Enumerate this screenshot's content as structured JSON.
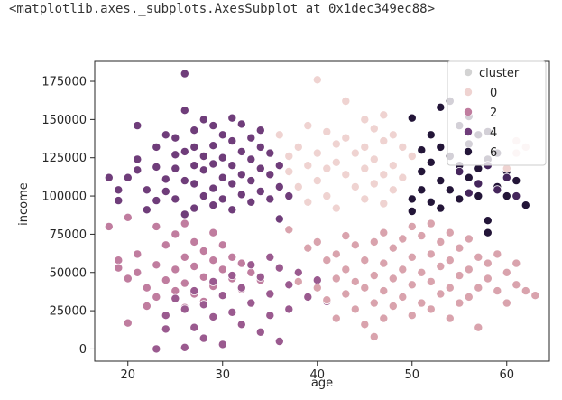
{
  "output": {
    "repr": "<matplotlib.axes._subplots.AxesSubplot at 0x1dec349ec88>"
  },
  "chart_data": {
    "type": "scatter",
    "title": "",
    "xlabel": "age",
    "ylabel": "income",
    "xlim": [
      16.5,
      64.5
    ],
    "ylim": [
      -8000,
      188000
    ],
    "xticks": [
      20,
      30,
      40,
      50,
      60
    ],
    "xtick_labels": [
      "20",
      "30",
      "40",
      "50",
      "60"
    ],
    "yticks": [
      0,
      25000,
      50000,
      75000,
      100000,
      125000,
      150000,
      175000
    ],
    "ytick_labels": [
      "0",
      "25000",
      "50000",
      "75000",
      "100000",
      "125000",
      "150000",
      "175000"
    ],
    "grid": false,
    "legend": {
      "title": "cluster",
      "placement": "top-right",
      "entries": [
        "0",
        "2",
        "4",
        "6"
      ]
    },
    "hue_colors": {
      "0": "#efd3d1",
      "1": "#d9a3ad",
      "2": "#c07d9f",
      "3": "#9a5a8f",
      "4": "#6f3d7a",
      "5": "#45265c",
      "6": "#231538"
    },
    "legend_colors": {
      "title": "#d3d3d3",
      "0": "#efd3d1",
      "2": "#c07d9f",
      "4": "#6f3d7a",
      "6": "#231538"
    },
    "points": [
      [
        18,
        112000,
        4
      ],
      [
        19,
        104000,
        4
      ],
      [
        19,
        97000,
        4
      ],
      [
        20,
        112000,
        4
      ],
      [
        21,
        146000,
        4
      ],
      [
        21,
        124000,
        4
      ],
      [
        21,
        117000,
        4
      ],
      [
        22,
        104000,
        4
      ],
      [
        22,
        91000,
        4
      ],
      [
        23,
        132000,
        4
      ],
      [
        23,
        119000,
        4
      ],
      [
        23,
        97000,
        4
      ],
      [
        24,
        140000,
        4
      ],
      [
        24,
        111000,
        4
      ],
      [
        24,
        103000,
        4
      ],
      [
        25,
        138000,
        4
      ],
      [
        25,
        127000,
        4
      ],
      [
        25,
        118000,
        4
      ],
      [
        25,
        98000,
        4
      ],
      [
        26,
        180000,
        4
      ],
      [
        26,
        156000,
        4
      ],
      [
        26,
        129000,
        4
      ],
      [
        26,
        110000,
        4
      ],
      [
        26,
        88000,
        4
      ],
      [
        27,
        143000,
        4
      ],
      [
        27,
        132000,
        4
      ],
      [
        27,
        120000,
        4
      ],
      [
        27,
        108000,
        4
      ],
      [
        27,
        92000,
        4
      ],
      [
        28,
        150000,
        4
      ],
      [
        28,
        126000,
        4
      ],
      [
        28,
        117000,
        4
      ],
      [
        28,
        100000,
        4
      ],
      [
        29,
        146000,
        4
      ],
      [
        29,
        133000,
        4
      ],
      [
        29,
        121000,
        4
      ],
      [
        29,
        105000,
        4
      ],
      [
        29,
        94000,
        4
      ],
      [
        30,
        140000,
        4
      ],
      [
        30,
        125000,
        4
      ],
      [
        30,
        112000,
        4
      ],
      [
        30,
        98000,
        4
      ],
      [
        31,
        151000,
        4
      ],
      [
        31,
        136000,
        4
      ],
      [
        31,
        120000,
        4
      ],
      [
        31,
        108000,
        4
      ],
      [
        31,
        91000,
        4
      ],
      [
        32,
        147000,
        4
      ],
      [
        32,
        129000,
        4
      ],
      [
        32,
        114000,
        4
      ],
      [
        32,
        101000,
        4
      ],
      [
        33,
        138000,
        4
      ],
      [
        33,
        124000,
        4
      ],
      [
        33,
        110000,
        4
      ],
      [
        33,
        96000,
        4
      ],
      [
        34,
        143000,
        4
      ],
      [
        34,
        132000,
        4
      ],
      [
        34,
        118000,
        4
      ],
      [
        34,
        103000,
        4
      ],
      [
        35,
        128000,
        4
      ],
      [
        35,
        114000,
        4
      ],
      [
        35,
        98000,
        4
      ],
      [
        36,
        120000,
        4
      ],
      [
        36,
        106000,
        4
      ],
      [
        36,
        85000,
        4
      ],
      [
        37,
        100000,
        4
      ],
      [
        18,
        80000,
        2
      ],
      [
        20,
        86000,
        2
      ],
      [
        19,
        58000,
        2
      ],
      [
        19,
        53000,
        2
      ],
      [
        20,
        46000,
        2
      ],
      [
        20,
        17000,
        2
      ],
      [
        21,
        62000,
        2
      ],
      [
        21,
        50000,
        2
      ],
      [
        22,
        40000,
        2
      ],
      [
        22,
        28000,
        2
      ],
      [
        23,
        80000,
        2
      ],
      [
        23,
        55000,
        2
      ],
      [
        23,
        34000,
        2
      ],
      [
        24,
        68000,
        2
      ],
      [
        24,
        45000,
        2
      ],
      [
        24,
        22000,
        2
      ],
      [
        25,
        75000,
        2
      ],
      [
        25,
        52000,
        2
      ],
      [
        25,
        38000,
        2
      ],
      [
        26,
        82000,
        2
      ],
      [
        26,
        60000,
        2
      ],
      [
        26,
        43000,
        2
      ],
      [
        26,
        27000,
        2
      ],
      [
        27,
        70000,
        2
      ],
      [
        27,
        54000,
        2
      ],
      [
        27,
        36000,
        2
      ],
      [
        28,
        64000,
        2
      ],
      [
        28,
        47000,
        2
      ],
      [
        28,
        31000,
        2
      ],
      [
        29,
        76000,
        2
      ],
      [
        29,
        58000,
        2
      ],
      [
        29,
        41000,
        2
      ],
      [
        30,
        68000,
        2
      ],
      [
        30,
        52000,
        2
      ],
      [
        30,
        35000,
        2
      ],
      [
        31,
        60000,
        2
      ],
      [
        31,
        46000,
        2
      ],
      [
        32,
        56000,
        2
      ],
      [
        32,
        39000,
        2
      ],
      [
        33,
        50000,
        2
      ],
      [
        34,
        45000,
        2
      ],
      [
        23,
        0,
        3
      ],
      [
        24,
        22000,
        3
      ],
      [
        24,
        13000,
        3
      ],
      [
        25,
        33000,
        3
      ],
      [
        26,
        1000,
        3
      ],
      [
        26,
        26000,
        3
      ],
      [
        27,
        14000,
        3
      ],
      [
        27,
        38000,
        3
      ],
      [
        28,
        29000,
        3
      ],
      [
        28,
        7000,
        3
      ],
      [
        29,
        44000,
        3
      ],
      [
        29,
        21000,
        3
      ],
      [
        30,
        35000,
        3
      ],
      [
        30,
        3000,
        3
      ],
      [
        31,
        48000,
        3
      ],
      [
        31,
        24000,
        3
      ],
      [
        32,
        40000,
        3
      ],
      [
        32,
        16000,
        3
      ],
      [
        33,
        55000,
        3
      ],
      [
        33,
        30000,
        3
      ],
      [
        34,
        47000,
        3
      ],
      [
        34,
        11000,
        3
      ],
      [
        35,
        60000,
        3
      ],
      [
        35,
        36000,
        3
      ],
      [
        35,
        22000,
        3
      ],
      [
        36,
        53000,
        3
      ],
      [
        36,
        5000,
        3
      ],
      [
        37,
        42000,
        3
      ],
      [
        37,
        26000,
        3
      ],
      [
        38,
        50000,
        3
      ],
      [
        39,
        34000,
        3
      ],
      [
        40,
        45000,
        3
      ],
      [
        41,
        31000,
        3
      ],
      [
        36,
        140000,
        0
      ],
      [
        37,
        126000,
        0
      ],
      [
        37,
        116000,
        0
      ],
      [
        38,
        132000,
        0
      ],
      [
        38,
        106000,
        0
      ],
      [
        39,
        146000,
        0
      ],
      [
        39,
        120000,
        0
      ],
      [
        39,
        96000,
        0
      ],
      [
        40,
        176000,
        0
      ],
      [
        40,
        128000,
        0
      ],
      [
        40,
        110000,
        0
      ],
      [
        41,
        142000,
        0
      ],
      [
        41,
        118000,
        0
      ],
      [
        41,
        100000,
        0
      ],
      [
        42,
        134000,
        0
      ],
      [
        42,
        122000,
        0
      ],
      [
        42,
        92000,
        0
      ],
      [
        43,
        162000,
        0
      ],
      [
        43,
        138000,
        0
      ],
      [
        43,
        114000,
        0
      ],
      [
        44,
        128000,
        0
      ],
      [
        44,
        106000,
        0
      ],
      [
        45,
        150000,
        0
      ],
      [
        45,
        132000,
        0
      ],
      [
        45,
        118000,
        0
      ],
      [
        45,
        98000,
        0
      ],
      [
        46,
        144000,
        0
      ],
      [
        46,
        124000,
        0
      ],
      [
        46,
        108000,
        0
      ],
      [
        47,
        153000,
        0
      ],
      [
        47,
        136000,
        0
      ],
      [
        47,
        114000,
        0
      ],
      [
        47,
        95000,
        0
      ],
      [
        48,
        140000,
        0
      ],
      [
        48,
        120000,
        0
      ],
      [
        48,
        104000,
        0
      ],
      [
        49,
        132000,
        0
      ],
      [
        49,
        112000,
        0
      ],
      [
        50,
        126000,
        0
      ],
      [
        37,
        78000,
        1
      ],
      [
        38,
        44000,
        1
      ],
      [
        39,
        66000,
        1
      ],
      [
        40,
        70000,
        1
      ],
      [
        40,
        40000,
        1
      ],
      [
        41,
        58000,
        1
      ],
      [
        41,
        32000,
        1
      ],
      [
        42,
        62000,
        1
      ],
      [
        42,
        46000,
        1
      ],
      [
        42,
        20000,
        1
      ],
      [
        43,
        74000,
        1
      ],
      [
        43,
        52000,
        1
      ],
      [
        43,
        36000,
        1
      ],
      [
        44,
        68000,
        1
      ],
      [
        44,
        44000,
        1
      ],
      [
        44,
        26000,
        1
      ],
      [
        45,
        58000,
        1
      ],
      [
        45,
        40000,
        1
      ],
      [
        45,
        16000,
        1
      ],
      [
        46,
        70000,
        1
      ],
      [
        46,
        48000,
        1
      ],
      [
        46,
        30000,
        1
      ],
      [
        46,
        8000,
        1
      ],
      [
        47,
        76000,
        1
      ],
      [
        47,
        56000,
        1
      ],
      [
        47,
        38000,
        1
      ],
      [
        47,
        20000,
        1
      ],
      [
        48,
        66000,
        1
      ],
      [
        48,
        46000,
        1
      ],
      [
        48,
        28000,
        1
      ],
      [
        49,
        72000,
        1
      ],
      [
        49,
        52000,
        1
      ],
      [
        49,
        34000,
        1
      ],
      [
        50,
        80000,
        1
      ],
      [
        50,
        60000,
        1
      ],
      [
        50,
        42000,
        1
      ],
      [
        50,
        22000,
        1
      ],
      [
        51,
        74000,
        1
      ],
      [
        51,
        50000,
        1
      ],
      [
        51,
        30000,
        1
      ],
      [
        52,
        82000,
        1
      ],
      [
        52,
        62000,
        1
      ],
      [
        52,
        44000,
        1
      ],
      [
        52,
        26000,
        1
      ],
      [
        53,
        70000,
        1
      ],
      [
        53,
        54000,
        1
      ],
      [
        53,
        36000,
        1
      ],
      [
        54,
        76000,
        1
      ],
      [
        54,
        58000,
        1
      ],
      [
        54,
        40000,
        1
      ],
      [
        54,
        20000,
        1
      ],
      [
        55,
        66000,
        1
      ],
      [
        55,
        48000,
        1
      ],
      [
        55,
        30000,
        1
      ],
      [
        56,
        72000,
        1
      ],
      [
        56,
        52000,
        1
      ],
      [
        56,
        34000,
        1
      ],
      [
        57,
        60000,
        1
      ],
      [
        57,
        40000,
        1
      ],
      [
        57,
        14000,
        1
      ],
      [
        58,
        56000,
        1
      ],
      [
        58,
        46000,
        1
      ],
      [
        59,
        62000,
        1
      ],
      [
        59,
        38000,
        1
      ],
      [
        60,
        50000,
        1
      ],
      [
        60,
        30000,
        1
      ],
      [
        61,
        42000,
        1
      ],
      [
        61,
        56000,
        1
      ],
      [
        62,
        38000,
        1
      ],
      [
        63,
        35000,
        1
      ],
      [
        50,
        151000,
        6
      ],
      [
        50,
        98000,
        6
      ],
      [
        50,
        90000,
        6
      ],
      [
        51,
        130000,
        6
      ],
      [
        51,
        116000,
        6
      ],
      [
        51,
        104000,
        6
      ],
      [
        52,
        140000,
        6
      ],
      [
        52,
        122000,
        6
      ],
      [
        52,
        96000,
        6
      ],
      [
        53,
        158000,
        6
      ],
      [
        53,
        132000,
        6
      ],
      [
        53,
        110000,
        6
      ],
      [
        53,
        92000,
        6
      ],
      [
        54,
        162000,
        6
      ],
      [
        54,
        126000,
        6
      ],
      [
        54,
        104000,
        6
      ],
      [
        55,
        146000,
        6
      ],
      [
        55,
        120000,
        6
      ],
      [
        55,
        98000,
        6
      ],
      [
        56,
        152000,
        6
      ],
      [
        56,
        134000,
        6
      ],
      [
        56,
        112000,
        6
      ],
      [
        57,
        140000,
        6
      ],
      [
        57,
        118000,
        6
      ],
      [
        57,
        100000,
        6
      ],
      [
        58,
        142000,
        6
      ],
      [
        58,
        124000,
        6
      ],
      [
        58,
        84000,
        6
      ],
      [
        58,
        76000,
        6
      ],
      [
        59,
        128000,
        6
      ],
      [
        59,
        106000,
        6
      ],
      [
        60,
        116000,
        6
      ],
      [
        60,
        100000,
        6
      ],
      [
        61,
        110000,
        6
      ],
      [
        62,
        94000,
        6
      ],
      [
        55,
        116000,
        5
      ],
      [
        56,
        102000,
        5
      ],
      [
        57,
        108000,
        5
      ],
      [
        58,
        120000,
        5
      ],
      [
        59,
        104000,
        5
      ],
      [
        60,
        112000,
        5
      ],
      [
        61,
        100000,
        5
      ],
      [
        60,
        118000,
        0
      ],
      [
        61,
        128000,
        0
      ],
      [
        62,
        132000,
        0
      ],
      [
        61,
        136000,
        0
      ]
    ]
  }
}
